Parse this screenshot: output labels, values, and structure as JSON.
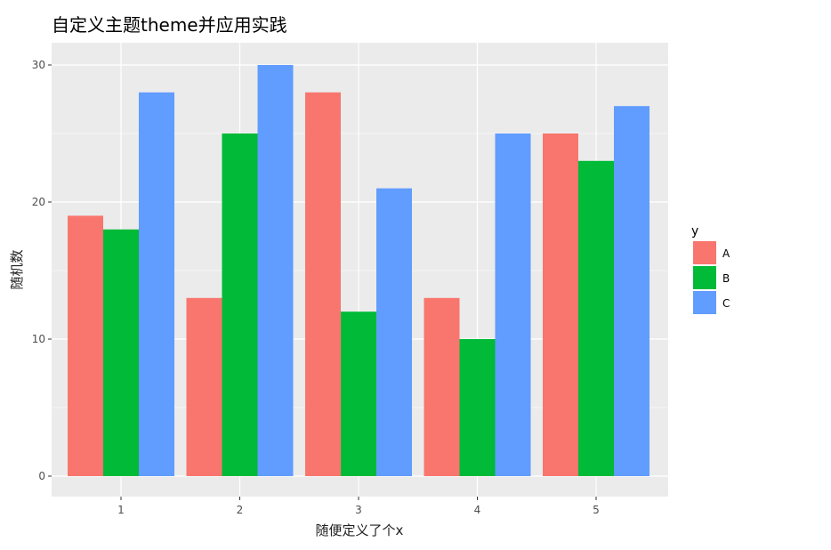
{
  "chart_data": {
    "type": "bar",
    "title": "自定义主题theme并应用实践",
    "xlabel": "随便定义了个x",
    "ylabel": "随机数",
    "categories": [
      "1",
      "2",
      "3",
      "4",
      "5"
    ],
    "series": [
      {
        "name": "A",
        "color": "#F8766D",
        "values": [
          19,
          13,
          28,
          13,
          25
        ]
      },
      {
        "name": "B",
        "color": "#00BA38",
        "values": [
          18,
          25,
          12,
          10,
          23
        ]
      },
      {
        "name": "C",
        "color": "#619CFF",
        "values": [
          28,
          30,
          21,
          25,
          27
        ]
      }
    ],
    "ylim": [
      0,
      30
    ],
    "yticks": [
      "0",
      "10",
      "20",
      "30"
    ],
    "legend": {
      "title": "y",
      "position": "right"
    },
    "grid": true,
    "panel_background": "#EBEBEB",
    "grid_color": "#FFFFFF"
  }
}
